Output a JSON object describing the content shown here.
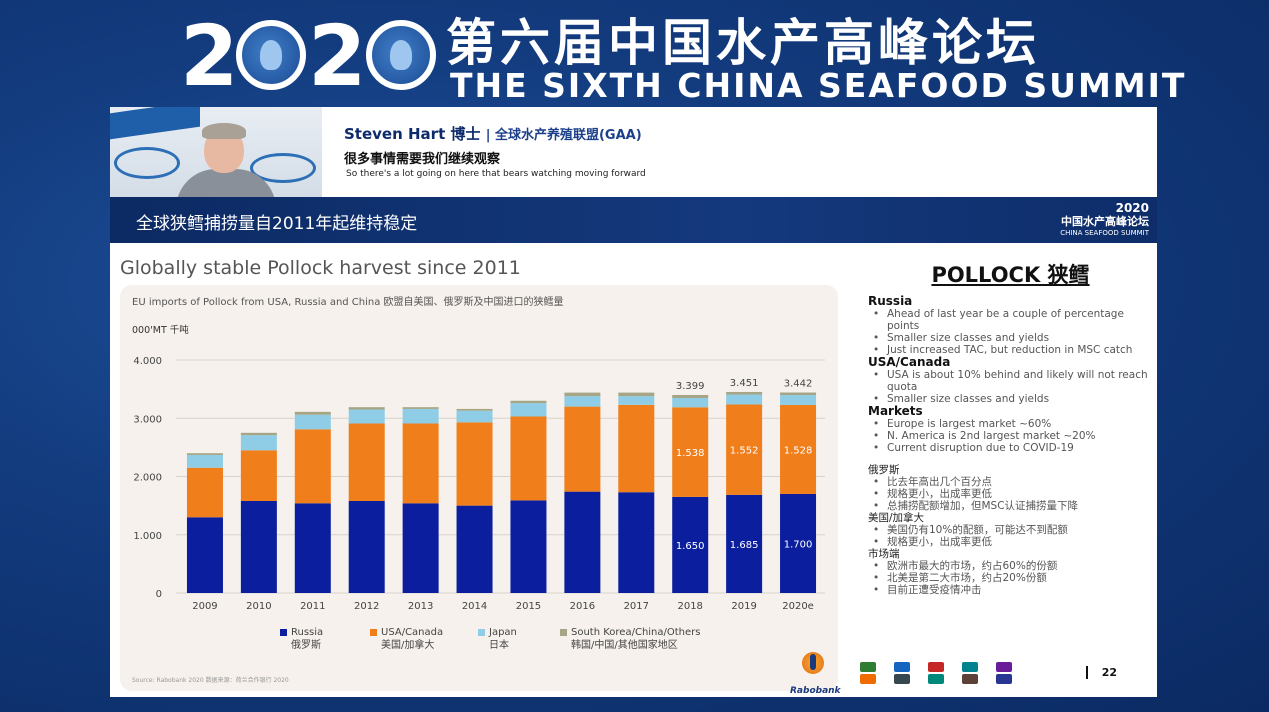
{
  "banner": {
    "year_digits": [
      "2",
      "2"
    ],
    "cn_title": "第六届中国水产高峰论坛",
    "en_title": "THE SIXTH CHINA SEAFOOD SUMMIT"
  },
  "speaker": {
    "name": "Steven Hart 博士",
    "org": "| 全球水产养殖联盟(GAA)",
    "subtitle_cn": "很多事情需要我们继续观察",
    "subtitle_en": "So there's a lot going on here that bears watching moving forward"
  },
  "slide": {
    "cn_heading": "全球狭鳕捕捞量自2011年起维持稳定",
    "mini_logo": {
      "year": "2020",
      "cn": "中国水产高峰论坛",
      "en": "CHINA SEAFOOD SUMMIT"
    },
    "title": "Globally stable Pollock harvest since 2011",
    "chart_subtitle": "EU imports of Pollock from USA, Russia and China   欧盟自美国、俄罗斯及中国进口的狭鳕量",
    "y_unit": "000'MT 千吨",
    "source": "Source: Rabobank 2020   数据来源：荷兰合作银行 2020",
    "page_number": "22",
    "rabobank_label": "Rabobank"
  },
  "chart_data": {
    "type": "bar",
    "stacked": true,
    "categories": [
      "2009",
      "2010",
      "2011",
      "2012",
      "2013",
      "2014",
      "2015",
      "2016",
      "2017",
      "2018",
      "2019",
      "2020e"
    ],
    "ylim": [
      0,
      4000
    ],
    "yticks": [
      "0",
      "1.000",
      "2.000",
      "3.000",
      "4.000"
    ],
    "ytick_values": [
      0,
      1000,
      2000,
      3000,
      4000
    ],
    "series": [
      {
        "name": "Russia",
        "name_cn": "俄罗斯",
        "color": "#0b1f9e",
        "values": [
          1300,
          1580,
          1540,
          1580,
          1540,
          1500,
          1590,
          1740,
          1730,
          1650,
          1685,
          1700
        ]
      },
      {
        "name": "USA/Canada",
        "name_cn": "美国/加拿大",
        "color": "#f07e1b",
        "values": [
          850,
          870,
          1270,
          1330,
          1370,
          1430,
          1440,
          1460,
          1500,
          1538,
          1552,
          1528
        ]
      },
      {
        "name": "Japan",
        "name_cn": "日本",
        "color": "#8fcde6",
        "values": [
          220,
          260,
          250,
          240,
          250,
          200,
          230,
          180,
          150,
          160,
          170,
          170
        ]
      },
      {
        "name": "South Korea/China/Others",
        "name_cn": "韩国/中国/其他国家地区",
        "color": "#a6a585",
        "values": [
          30,
          40,
          50,
          40,
          30,
          30,
          40,
          60,
          60,
          51,
          44,
          44
        ]
      }
    ],
    "totals_labels": [
      {
        "category": "2018",
        "label": "3.399"
      },
      {
        "category": "2019",
        "label": "3.451"
      },
      {
        "category": "2020e",
        "label": "3.442"
      }
    ],
    "inner_labels": {
      "Russia": {
        "2018": "1.650",
        "2019": "1.685",
        "2020e": "1.700"
      },
      "USA/Canada": {
        "2018": "1.538",
        "2019": "1.552",
        "2020e": "1.528"
      }
    },
    "legend_position": "bottom"
  },
  "notes": {
    "title": "POLLOCK 狭鳕",
    "sections": [
      {
        "heading": "Russia",
        "bullets": [
          "Ahead of last year be a couple of percentage points",
          "Smaller size classes and yields",
          "Just increased TAC, but reduction in MSC catch"
        ]
      },
      {
        "heading": "USA/Canada",
        "bullets": [
          "USA is about 10% behind and likely will not reach quota",
          "Smaller size classes and yields"
        ]
      },
      {
        "heading": "Markets",
        "bullets": [
          "Europe is largest market ~60%",
          "N. America is 2nd largest market ~20%",
          "Current disruption due to COVID-19"
        ]
      }
    ],
    "cn_sections": [
      {
        "heading": "俄罗斯",
        "bullets": [
          "比去年高出几个百分点",
          "规格更小，出成率更低",
          "总捕捞配额增加，但MSC认证捕捞量下降"
        ]
      },
      {
        "heading": "美国/加拿大",
        "bullets": [
          "美国仍有10%的配额，可能达不到配额",
          "规格更小，出成率更低"
        ]
      },
      {
        "heading": "市场端",
        "bullets": [
          "欧洲市最大的市场，约占60%的份额",
          "北美是第二大市场，约占20%份额",
          "目前正遭受疫情冲击"
        ]
      }
    ]
  }
}
